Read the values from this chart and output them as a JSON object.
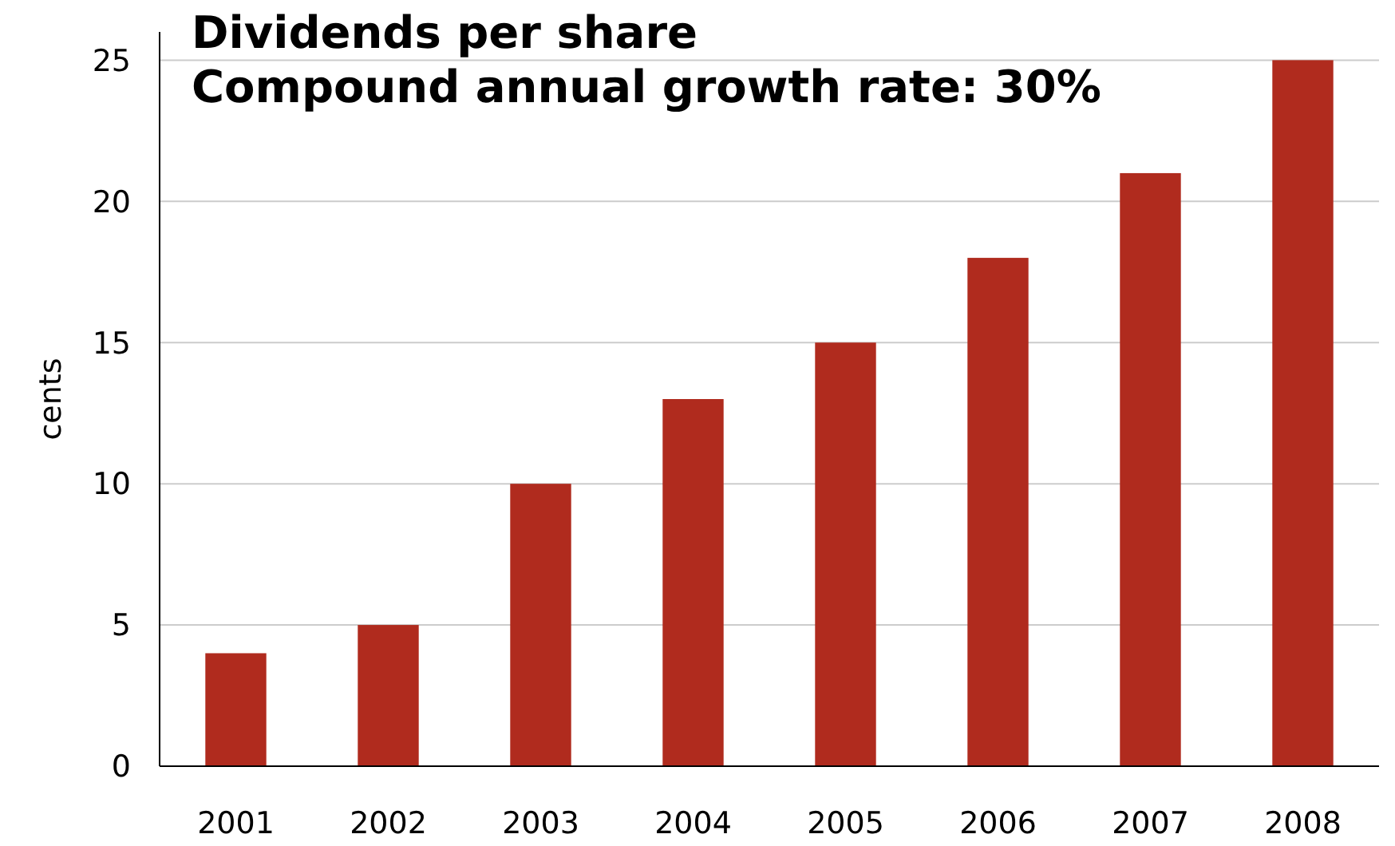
{
  "chart_data": {
    "type": "bar",
    "title": "Dividends per share",
    "subtitle": "Compound annual growth rate: 30%",
    "ylabel": "cents",
    "categories": [
      "2001",
      "2002",
      "2003",
      "2004",
      "2005",
      "2006",
      "2007",
      "2008"
    ],
    "values": [
      4,
      5,
      10,
      13,
      15,
      18,
      21,
      25
    ],
    "color": "#b02b1e",
    "ylim": [
      0,
      26
    ],
    "yticks": [
      0,
      5,
      10,
      15,
      20,
      25
    ],
    "grid": "y"
  }
}
